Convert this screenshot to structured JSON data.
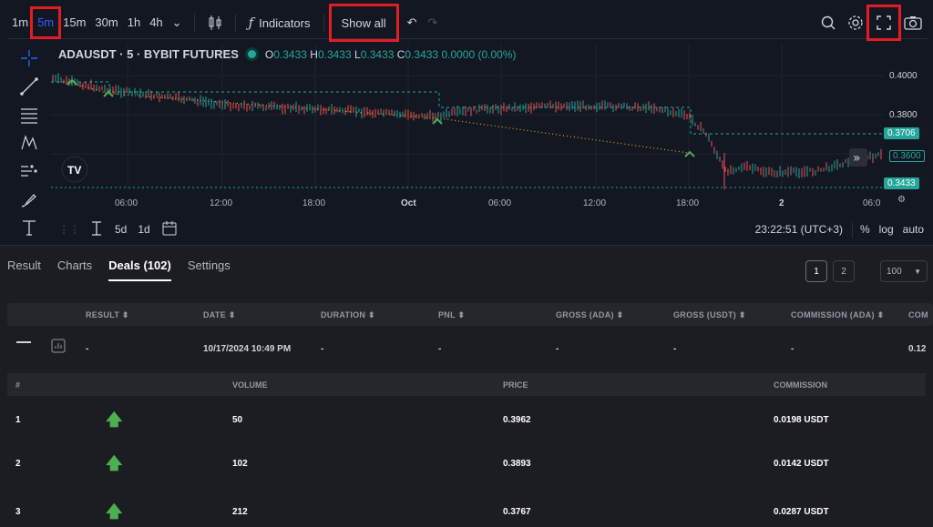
{
  "toolbar": {
    "timeframes": [
      "1m",
      "5m",
      "15m",
      "30m",
      "1h",
      "4h"
    ],
    "active_timeframe": "5m",
    "indicators_label": "Indicators",
    "show_all_label": "Show all"
  },
  "legend": {
    "symbol": "ADAUSDT · 5 · BYBIT FUTURES",
    "o_label": "O",
    "o": "0.3433",
    "h_label": "H",
    "h": "0.3433",
    "l_label": "L",
    "l": "0.3433",
    "c_label": "C",
    "c": "0.3433",
    "change": "0.0000 (0.00%)"
  },
  "price_axis": {
    "ticks": [
      "0.4000",
      "0.3800",
      "0.3600"
    ],
    "tag_green": "0.3706",
    "tag_outline": "0.3600",
    "tag_current": "0.3433"
  },
  "time_axis": [
    "06:00",
    "12:00",
    "18:00",
    "Oct",
    "06:00",
    "12:00",
    "18:00",
    "2",
    "06:0"
  ],
  "bottom_bar": {
    "range_5d": "5d",
    "range_1d": "1d",
    "clock": "23:22:51 (UTC+3)",
    "percent": "%",
    "log": "log",
    "auto": "auto"
  },
  "tabs": [
    {
      "label": "Result",
      "active": false
    },
    {
      "label": "Charts",
      "active": false
    },
    {
      "label": "Deals (102)",
      "active": true
    },
    {
      "label": "Settings",
      "active": false
    }
  ],
  "pager": {
    "pages": [
      "1",
      "2"
    ],
    "page_size": "100"
  },
  "deals_columns": [
    "RESULT ⬍",
    "DATE ⬍",
    "DURATION ⬍",
    "PNL ⬍",
    "GROSS (ADA) ⬍",
    "GROSS (USDT) ⬍",
    "COMMISSION (ADA) ⬍",
    "COM"
  ],
  "deal": {
    "result": "-",
    "date": "10/17/2024 10:49 PM",
    "duration": "-",
    "pnl": "-",
    "gross_ada": "-",
    "gross_usdt": "-",
    "commission_ada": "-",
    "commission_trunc": "0.12"
  },
  "sub_columns": [
    "#",
    "VOLUME",
    "PRICE",
    "COMMISSION"
  ],
  "orders": [
    {
      "n": "1",
      "volume": "50",
      "price": "0.3962",
      "commission": "0.0198 USDT"
    },
    {
      "n": "2",
      "volume": "102",
      "price": "0.3893",
      "commission": "0.0142 USDT"
    },
    {
      "n": "3",
      "volume": "212",
      "price": "0.3767",
      "commission": "0.0287 USDT"
    }
  ],
  "colors": {
    "accent": "#2962ff",
    "up": "#26a69a",
    "down": "#ef5350",
    "highlight": "#e31c24",
    "buy_arrow": "#4caf50"
  }
}
